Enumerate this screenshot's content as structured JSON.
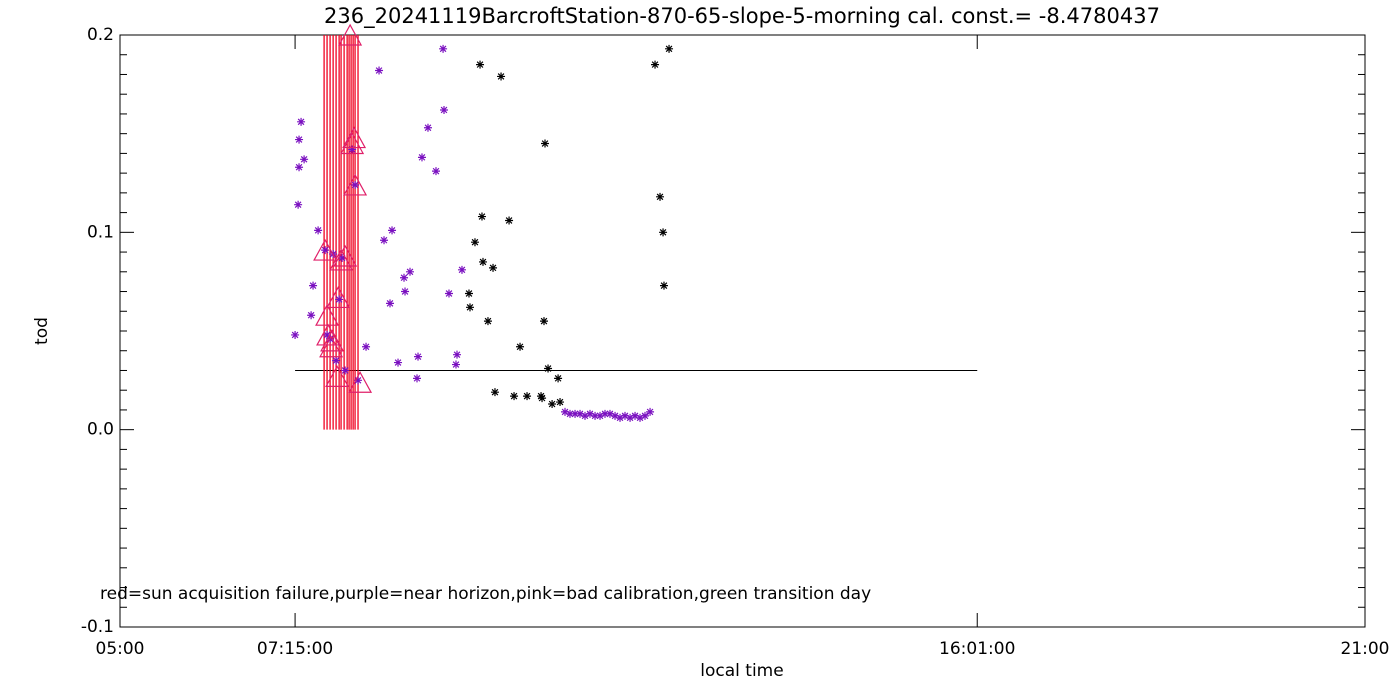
{
  "chart_data": {
    "type": "scatter",
    "title": "236_20241119BarcroftStation-870-65-slope-5-morning cal. const.= -8.4780437",
    "xlabel": "local time",
    "ylabel": "tod",
    "annotation": "red=sun acquisition failure,purple=near horizon,pink=bad calibration,green transition day",
    "xlim": [
      5,
      21
    ],
    "xticks": [
      {
        "value": 5,
        "label": "05:00"
      },
      {
        "value": 7.25,
        "label": "07:15:00"
      },
      {
        "value": 16.0167,
        "label": "16:01:00"
      },
      {
        "value": 21,
        "label": "21:00"
      }
    ],
    "ylim": [
      -0.1,
      0.2
    ],
    "yticks": [
      {
        "value": -0.1,
        "label": "-0.1"
      },
      {
        "value": 0,
        "label": "0.0"
      },
      0.1,
      0.2
    ],
    "reference_line": {
      "y": 0.03,
      "x": [
        7.25,
        16.0167
      ],
      "color": "#000000"
    },
    "series": [
      {
        "marker": "vline",
        "color": "#f00020",
        "x": [
          7.623,
          7.661,
          7.7,
          7.739,
          7.777,
          7.816,
          7.841,
          7.88,
          7.919,
          7.944,
          7.97,
          7.996,
          8.021,
          8.059
        ]
      },
      {
        "marker": "asterisk",
        "color": "#000000",
        "x": [
          9.485,
          9.498,
          9.562,
          9.627,
          9.652,
          9.665,
          9.729,
          9.794,
          9.819,
          9.897,
          10.0,
          10.064,
          10.141,
          10.231,
          10.411,
          10.424,
          10.449,
          10.462,
          10.501,
          10.553,
          10.63,
          10.655,
          11.876,
          11.94,
          11.979,
          11.991,
          12.056
        ],
        "y": [
          0.069,
          0.062,
          0.095,
          0.185,
          0.108,
          0.085,
          0.055,
          0.082,
          0.019,
          0.179,
          0.106,
          0.017,
          0.042,
          0.017,
          0.017,
          0.016,
          0.055,
          0.145,
          0.031,
          0.013,
          0.026,
          0.014,
          0.185,
          0.118,
          0.1,
          0.073,
          0.193
        ]
      },
      {
        "marker": "asterisk",
        "color": "#7a10c0",
        "x": [
          7.25,
          7.289,
          7.301,
          7.301,
          7.327,
          7.366,
          7.456,
          7.481,
          7.546,
          7.636,
          7.661,
          7.7,
          7.739,
          7.777,
          7.816,
          7.854,
          7.893,
          7.983,
          8.021,
          8.059,
          8.162,
          8.329,
          8.393,
          8.47,
          8.496,
          8.573,
          8.65,
          8.663,
          8.727,
          8.817,
          8.83,
          8.881,
          8.958,
          9.061,
          9.152,
          9.164,
          9.228,
          9.318,
          9.331,
          9.395,
          10.719,
          10.783,
          10.848,
          10.912,
          10.976,
          11.04,
          11.105,
          11.169,
          11.233,
          11.297,
          11.362,
          11.426,
          11.49,
          11.555,
          11.619,
          11.683,
          11.747,
          11.812
        ],
        "y": [
          0.048,
          0.114,
          0.133,
          0.147,
          0.156,
          0.137,
          0.058,
          0.073,
          0.101,
          0.091,
          0.048,
          0.046,
          0.089,
          0.035,
          0.066,
          0.087,
          0.03,
          0.142,
          0.124,
          0.025,
          0.042,
          0.182,
          0.096,
          0.064,
          0.101,
          0.034,
          0.077,
          0.07,
          0.08,
          0.026,
          0.037,
          0.138,
          0.153,
          0.131,
          0.193,
          0.162,
          0.069,
          0.033,
          0.038,
          0.081,
          0.009,
          0.008,
          0.008,
          0.008,
          0.007,
          0.008,
          0.007,
          0.007,
          0.008,
          0.008,
          0.007,
          0.006,
          0.007,
          0.006,
          0.007,
          0.006,
          0.007,
          0.009
        ]
      },
      {
        "marker": "triangle",
        "color": "#e0206a",
        "x": [
          7.636,
          7.661,
          7.674,
          7.726,
          7.803,
          7.841,
          7.893,
          7.957,
          7.983,
          8.008,
          8.021,
          8.085,
          7.79,
          7.713
        ],
        "y": [
          0.09,
          0.057,
          0.047,
          0.044,
          0.066,
          0.085,
          0.087,
          0.199,
          0.144,
          0.147,
          0.123,
          0.023,
          0.026,
          0.041
        ]
      }
    ]
  }
}
